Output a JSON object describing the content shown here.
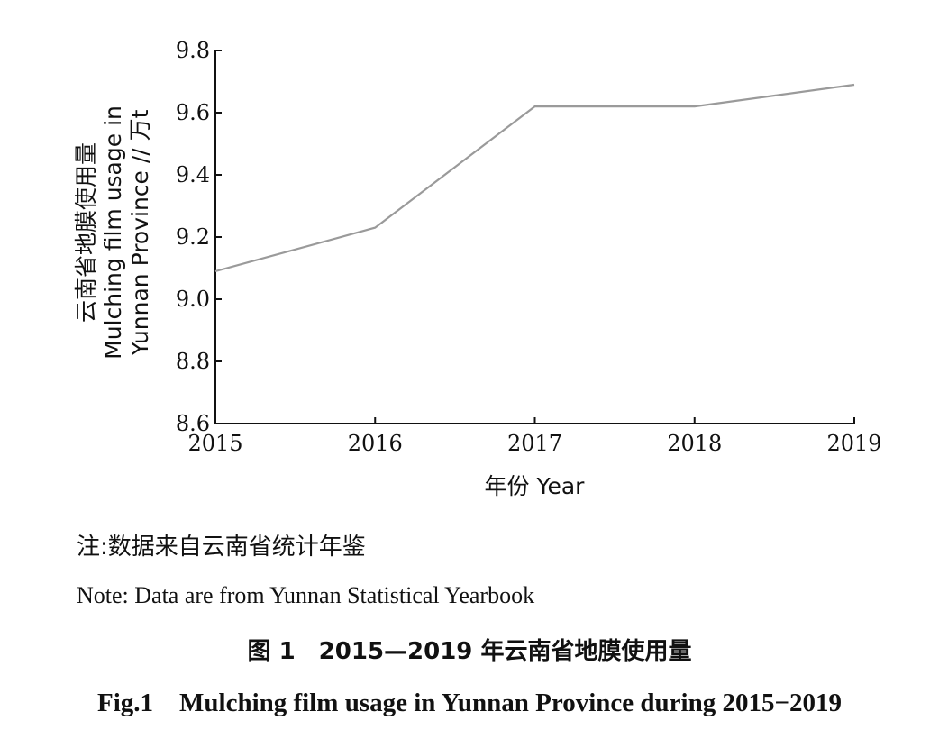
{
  "chart_data": {
    "type": "line",
    "categories": [
      "2015",
      "2016",
      "2017",
      "2018",
      "2019"
    ],
    "series": [
      {
        "values": [
          9.09,
          9.23,
          9.62,
          9.62,
          9.69
        ]
      }
    ],
    "ylim": [
      8.6,
      9.8
    ],
    "yticks": [
      "8.6",
      "8.8",
      "9.0",
      "9.2",
      "9.4",
      "9.6",
      "9.8"
    ],
    "xlabel": "年份 Year",
    "ylabel": [
      "云南省地膜使用量",
      "Mulching film usage in",
      "Yunnan Province // 万t"
    ],
    "grid": false,
    "line_color": "#9a9a9a"
  },
  "note": {
    "cn": "注:数据来自云南省统计年鉴",
    "en": "Note: Data are from Yunnan Statistical Yearbook"
  },
  "caption": {
    "cn": "图 1　2015—2019 年云南省地膜使用量",
    "en": "Fig.1　Mulching film usage in Yunnan Province during 2015−2019"
  }
}
